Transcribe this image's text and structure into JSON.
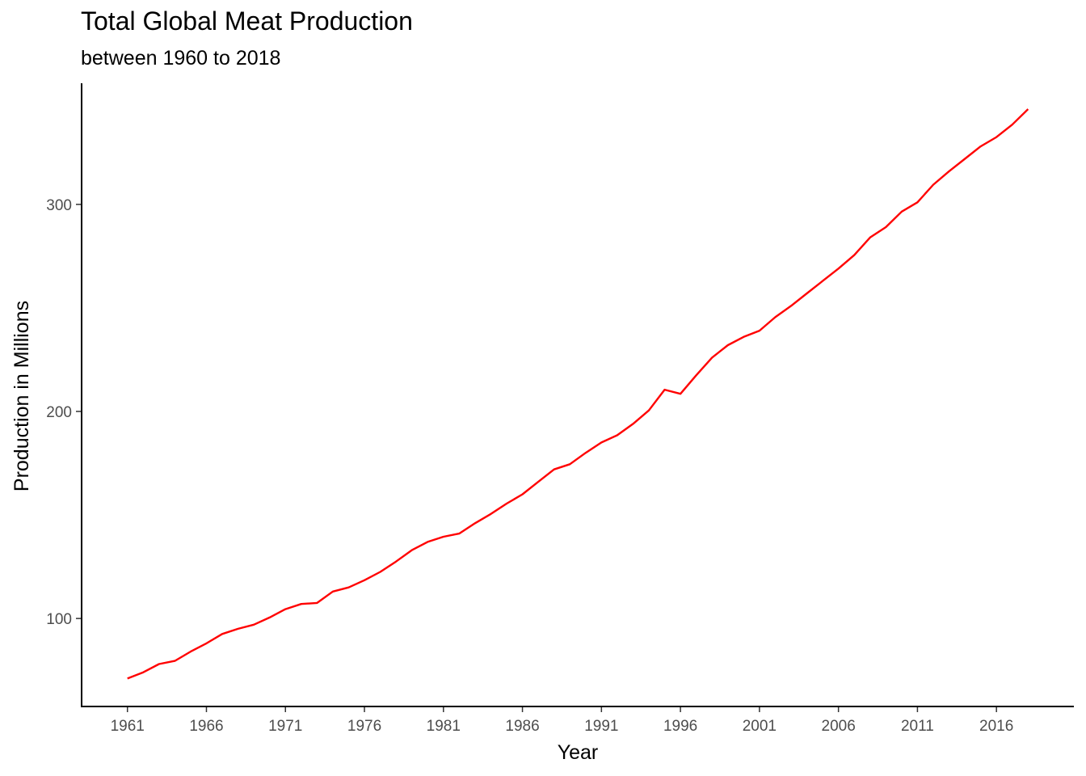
{
  "chart_data": {
    "type": "line",
    "title": "Total Global Meat Production",
    "subtitle": "between 1960 to 2018",
    "xlabel": "Year",
    "ylabel": "Production in Millions",
    "x_ticks": [
      1961,
      1966,
      1971,
      1976,
      1981,
      1986,
      1991,
      1996,
      2001,
      2006,
      2011,
      2016
    ],
    "y_ticks": [
      100,
      200,
      300
    ],
    "xlim": [
      1958.1,
      2020.9
    ],
    "ylim": [
      57.5,
      358.5
    ],
    "grid": false,
    "line_color": "#ff0000",
    "x": [
      1961,
      1962,
      1963,
      1964,
      1965,
      1966,
      1967,
      1968,
      1969,
      1970,
      1971,
      1972,
      1973,
      1974,
      1975,
      1976,
      1977,
      1978,
      1979,
      1980,
      1981,
      1982,
      1983,
      1984,
      1985,
      1986,
      1987,
      1988,
      1989,
      1990,
      1991,
      1992,
      1993,
      1994,
      1995,
      1996,
      1997,
      1998,
      1999,
      2000,
      2001,
      2002,
      2003,
      2004,
      2005,
      2006,
      2007,
      2008,
      2009,
      2010,
      2011,
      2012,
      2013,
      2014,
      2015,
      2016,
      2017,
      2018
    ],
    "series": [
      {
        "values": [
          71,
          74,
          78,
          79.5,
          84,
          88,
          92.5,
          95,
          97,
          100.5,
          104.5,
          107,
          107.5,
          113,
          115,
          118.5,
          122.5,
          127.5,
          133,
          137,
          139.5,
          141,
          146,
          150.5,
          155.5,
          160,
          166,
          172,
          174.5,
          180,
          185,
          188.5,
          194,
          200.5,
          210.5,
          208.5,
          217.5,
          226,
          232,
          236,
          239,
          245.5,
          251,
          257,
          263,
          269,
          275.5,
          284,
          289,
          296.5,
          301,
          309.5,
          316,
          322,
          328,
          332.5,
          338.5,
          346
        ]
      }
    ]
  }
}
